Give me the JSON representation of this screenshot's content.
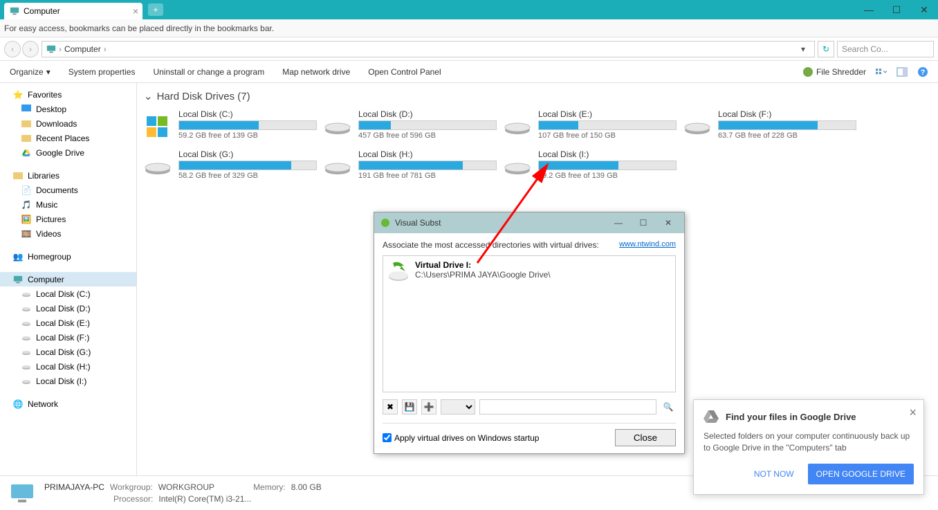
{
  "titlebar": {
    "tab_title": "Computer",
    "newtab_glyph": "+"
  },
  "infobar": {
    "text": "For easy access, bookmarks can be placed directly in the bookmarks bar."
  },
  "address": {
    "location": "Computer",
    "sep": "›",
    "search_placeholder": "Search Co..."
  },
  "toolbar": {
    "organize": "Organize",
    "system_properties": "System properties",
    "uninstall": "Uninstall or change a program",
    "map_drive": "Map network drive",
    "control_panel": "Open Control Panel",
    "file_shredder": "File Shredder"
  },
  "sidebar": {
    "favorites": {
      "label": "Favorites",
      "items": [
        "Desktop",
        "Downloads",
        "Recent Places",
        "Google Drive"
      ]
    },
    "libraries": {
      "label": "Libraries",
      "items": [
        "Documents",
        "Music",
        "Pictures",
        "Videos"
      ]
    },
    "homegroup": {
      "label": "Homegroup"
    },
    "computer": {
      "label": "Computer",
      "items": [
        "Local Disk (C:)",
        "Local Disk (D:)",
        "Local Disk (E:)",
        "Local Disk (F:)",
        "Local Disk (G:)",
        "Local Disk (H:)",
        "Local Disk (I:)"
      ]
    },
    "network": {
      "label": "Network"
    }
  },
  "content": {
    "section_title": "Hard Disk Drives (7)",
    "drives": [
      {
        "name": "Local Disk (C:)",
        "free": "59.2 GB free of 139 GB",
        "used_pct": 58,
        "is_c": true
      },
      {
        "name": "Local Disk (D:)",
        "free": "457 GB free of 596 GB",
        "used_pct": 23
      },
      {
        "name": "Local Disk (E:)",
        "free": "107 GB free of 150 GB",
        "used_pct": 29
      },
      {
        "name": "Local Disk (F:)",
        "free": "63.7 GB free of 228 GB",
        "used_pct": 72
      },
      {
        "name": "Local Disk (G:)",
        "free": "58.2 GB free of 329 GB",
        "used_pct": 82
      },
      {
        "name": "Local Disk (H:)",
        "free": "191 GB free of 781 GB",
        "used_pct": 76
      },
      {
        "name": "Local Disk (I:)",
        "free": "59.2 GB free of 139 GB",
        "used_pct": 58
      }
    ]
  },
  "dialog": {
    "title": "Visual Subst",
    "desc": "Associate the most accessed directories with virtual drives:",
    "link": "www.ntwind.com",
    "vd_title": "Virtual Drive I:",
    "vd_path": "C:\\Users\\PRIMA JAYA\\Google Drive\\",
    "checkbox": "Apply virtual drives on Windows startup",
    "close": "Close"
  },
  "popup": {
    "title": "Find your files in Google Drive",
    "body": "Selected folders on your computer continuously back up to Google Drive in the \"Computers\" tab",
    "not_now": "NOT NOW",
    "open": "OPEN GOOGLE DRIVE"
  },
  "status": {
    "pc_name": "PRIMAJAYA-PC",
    "workgroup_label": "Workgroup:",
    "workgroup": "WORKGROUP",
    "memory_label": "Memory:",
    "memory": "8.00 GB",
    "processor_label": "Processor:",
    "processor": "Intel(R) Core(TM) i3-21..."
  },
  "colors": {
    "accent": "#1caeb8",
    "bar_fill": "#29a9e0",
    "bar_bg": "#e6e6e6"
  }
}
